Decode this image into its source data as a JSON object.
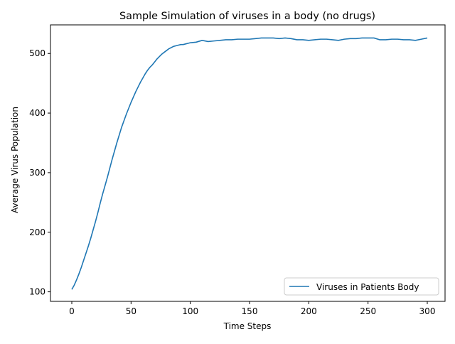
{
  "chart_data": {
    "type": "line",
    "title": "Sample Simulation of viruses in a body (no drugs)",
    "xlabel": "Time Steps",
    "ylabel": "Average Virus Population",
    "xlim": [
      -18,
      315
    ],
    "ylim": [
      84,
      548
    ],
    "xticks": [
      0,
      50,
      100,
      150,
      200,
      250,
      300
    ],
    "yticks": [
      100,
      200,
      300,
      400,
      500
    ],
    "grid": false,
    "legend": {
      "position": "lower-right",
      "entries": [
        "Viruses in Patients Body"
      ]
    },
    "series": [
      {
        "name": "Viruses in Patients Body",
        "color": "#1f77b4",
        "x": [
          0,
          2,
          4,
          6,
          8,
          10,
          12,
          14,
          16,
          18,
          20,
          22,
          24,
          26,
          28,
          30,
          32,
          34,
          36,
          38,
          40,
          42,
          44,
          46,
          48,
          50,
          52,
          54,
          56,
          58,
          60,
          62,
          64,
          66,
          68,
          70,
          72,
          74,
          76,
          78,
          80,
          82,
          84,
          86,
          88,
          90,
          92,
          94,
          96,
          98,
          100,
          105,
          110,
          115,
          120,
          125,
          130,
          135,
          140,
          145,
          150,
          155,
          160,
          165,
          170,
          175,
          180,
          185,
          190,
          195,
          200,
          205,
          210,
          215,
          220,
          225,
          230,
          235,
          240,
          245,
          250,
          255,
          260,
          265,
          270,
          275,
          280,
          285,
          290,
          295,
          300
        ],
        "values": [
          104,
          111,
          120,
          130,
          141,
          153,
          165,
          177,
          190,
          204,
          218,
          233,
          249,
          264,
          278,
          292,
          307,
          322,
          336,
          350,
          363,
          376,
          387,
          398,
          408,
          418,
          427,
          436,
          444,
          452,
          459,
          466,
          472,
          477,
          481,
          486,
          491,
          495,
          499,
          502,
          505,
          508,
          510,
          512,
          513,
          514,
          515,
          515,
          516,
          517,
          518,
          519,
          522,
          520,
          521,
          522,
          523,
          523,
          524,
          524,
          524,
          525,
          526,
          526,
          526,
          525,
          526,
          525,
          523,
          523,
          522,
          523,
          524,
          524,
          523,
          522,
          524,
          525,
          525,
          526,
          526,
          526,
          523,
          523,
          524,
          524,
          523,
          523,
          522,
          524,
          526
        ]
      }
    ]
  }
}
